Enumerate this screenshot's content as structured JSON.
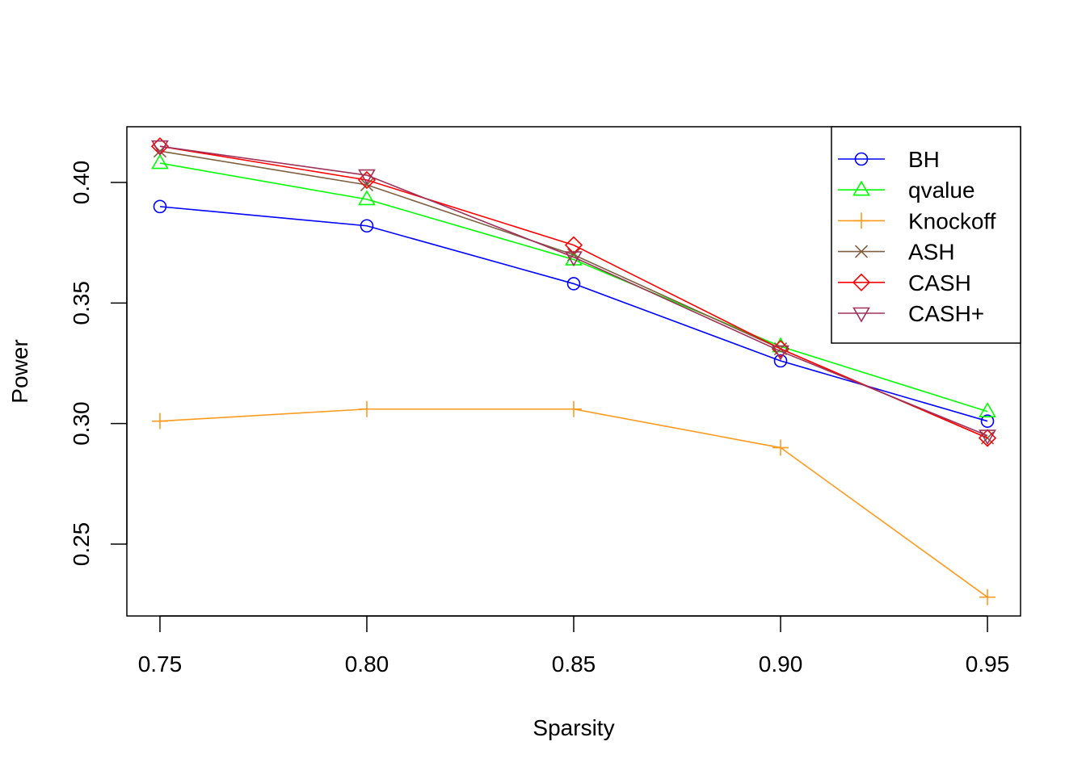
{
  "chart_data": {
    "type": "line",
    "title": "",
    "xlabel": "Sparsity",
    "ylabel": "Power",
    "xlim": [
      0.742,
      0.958
    ],
    "ylim": [
      0.2202,
      0.4231
    ],
    "grid": false,
    "x": [
      0.75,
      0.8,
      0.85,
      0.9,
      0.95
    ],
    "xticks": [
      0.75,
      0.8,
      0.85,
      0.9,
      0.95
    ],
    "xtick_labels": [
      "0.75",
      "0.80",
      "0.85",
      "0.90",
      "0.95"
    ],
    "yticks": [
      0.25,
      0.3,
      0.35,
      0.4
    ],
    "ytick_labels": [
      "0.25",
      "0.30",
      "0.35",
      "0.40"
    ],
    "legend_position": "top-right",
    "series": [
      {
        "name": "BH",
        "marker": "circle",
        "color": "#0000FF",
        "values": [
          0.39,
          0.382,
          0.358,
          0.326,
          0.301
        ]
      },
      {
        "name": "qvalue",
        "marker": "triangle-up",
        "color": "#00FF00",
        "values": [
          0.408,
          0.393,
          0.368,
          0.332,
          0.305
        ]
      },
      {
        "name": "Knockoff",
        "marker": "plus",
        "color": "#FF9A1F",
        "values": [
          0.301,
          0.306,
          0.306,
          0.29,
          0.228
        ]
      },
      {
        "name": "ASH",
        "marker": "cross",
        "color": "#7F5F3F",
        "values": [
          0.413,
          0.399,
          0.37,
          0.331,
          0.294
        ]
      },
      {
        "name": "CASH",
        "marker": "diamond",
        "color": "#FF0000",
        "values": [
          0.415,
          0.401,
          0.374,
          0.331,
          0.294
        ]
      },
      {
        "name": "CASH+",
        "marker": "triangle-down",
        "color": "#A0305A",
        "values": [
          0.415,
          0.403,
          0.369,
          0.33,
          0.295
        ]
      }
    ]
  }
}
